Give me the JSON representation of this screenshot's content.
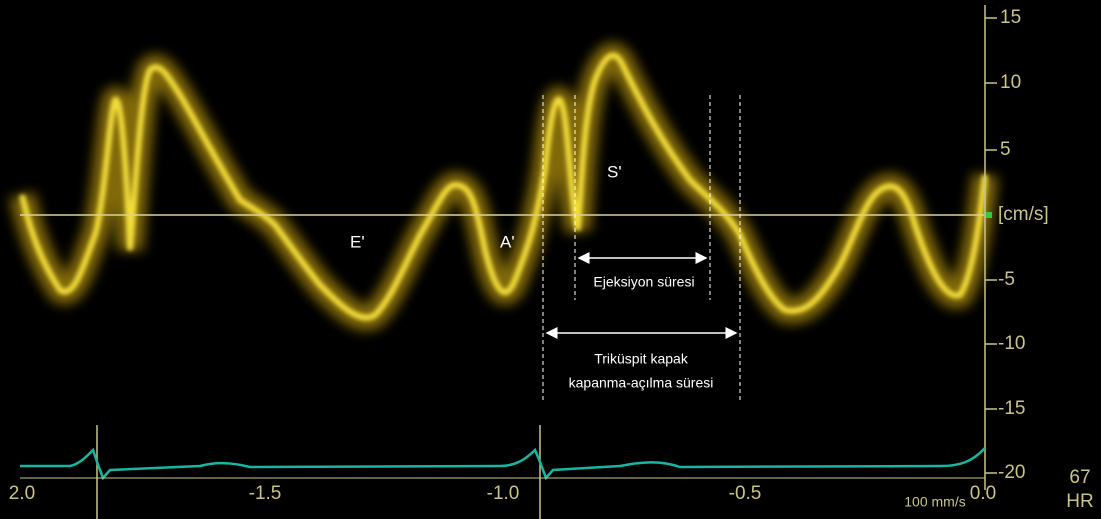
{
  "y_axis": {
    "ticks": [
      "15",
      "10",
      "5",
      "-5",
      "-10",
      "-15",
      "-20"
    ],
    "unit": "[cm/s]"
  },
  "x_axis": {
    "ticks": [
      "2.0",
      "-1.5",
      "-1.0",
      "-0.5",
      "0.0"
    ]
  },
  "labels": {
    "e_wave": "E'",
    "a_wave": "A'",
    "s_wave": "S'",
    "ejection": "Ejeksiyon süresi",
    "tricuspid_line1": "Triküspit kapak",
    "tricuspid_line2": "kapanma-açılma süresi"
  },
  "sweep_speed": "100 mm/s",
  "heart_rate": {
    "value": "67",
    "label": "HR"
  }
}
